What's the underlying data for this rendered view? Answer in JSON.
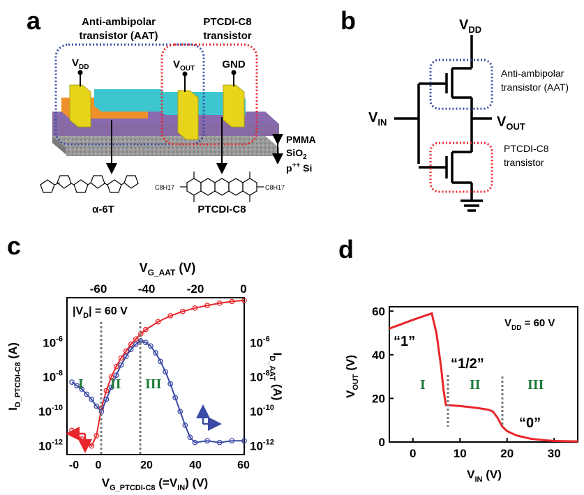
{
  "panels": {
    "a": {
      "label": "a",
      "aat_label_1": "Anti-ambipolar",
      "aat_label_2": "transistor (AAT)",
      "ptcdi_label_1": "PTCDI-C8",
      "ptcdi_label_2": "transistor",
      "vdd": "V",
      "vdd_sub": "DD",
      "vout": "V",
      "vout_sub": "OUT",
      "gnd": "GND",
      "pmma": "PMMA",
      "sio2": "SiO",
      "sio2_sub": "2",
      "si": "p",
      "si_sup": "++",
      "si_rest": " Si",
      "mol1": "α-6T",
      "mol2": "PTCDI-C8",
      "c8h17_left": "C8H17",
      "c8h17_right": "C8H17"
    },
    "b": {
      "label": "b",
      "vdd": "V",
      "vdd_sub": "DD",
      "vin": "V",
      "vin_sub": "IN",
      "vout": "V",
      "vout_sub": "OUT",
      "aat_1": "Anti-ambipolar",
      "aat_2": "transistor (AAT)",
      "ptcdi_1": "PTCDI-C8",
      "ptcdi_2": "transistor"
    },
    "c": {
      "label": "c",
      "top_axis": "V",
      "top_axis_sub": "G_AAT",
      "top_axis_unit": " (V)",
      "top_ticks": [
        "-60",
        "-40",
        "-20",
        "0"
      ],
      "bottom_ticks": [
        "-0",
        "0",
        "20",
        "40",
        "60"
      ],
      "bottom_axis": "V",
      "bottom_axis_sub": "G_PTCDI-C8",
      "bottom_axis_rest": " (=V",
      "bottom_axis_rest_sub": "IN",
      "bottom_axis_unit": ") (V)",
      "left_axis": "I",
      "left_axis_sub": "D_PTCDI-C8",
      "left_axis_unit": " (A)",
      "right_axis": "I",
      "right_axis_sub": "D_AAT",
      "right_axis_unit": " (A)",
      "left_ticks": [
        "10-12",
        "10-10",
        "10-8",
        "10-6"
      ],
      "right_ticks": [
        "10-12",
        "10-10",
        "10-8",
        "10-6"
      ],
      "vd_note": "|V",
      "vd_note_sub": "D",
      "vd_note_rest": "| = 60 V",
      "region_1": "I",
      "region_2": "II",
      "region_3": "III"
    },
    "d": {
      "label": "d",
      "y_axis": "V",
      "y_axis_sub": "OUT",
      "y_axis_unit": " (V)",
      "x_axis": "V",
      "x_axis_sub": "IN",
      "x_axis_unit": " (V)",
      "y_ticks": [
        "0",
        "20",
        "40",
        "60"
      ],
      "x_ticks": [
        "0",
        "10",
        "20",
        "30"
      ],
      "vdd_note": "V",
      "vdd_note_sub": "DD",
      "vdd_note_rest": " = 60 V",
      "state_1": "“1”",
      "state_half": "“1/2”",
      "state_0": "“0”",
      "region_1": "I",
      "region_2": "II",
      "region_3": "III"
    }
  },
  "colors": {
    "red": "#e8262b",
    "blue": "#3a4aa6",
    "green": "#1f7a3a",
    "purple": "#7a5a9a",
    "cyan": "#3ec6d0",
    "orange": "#f0902a",
    "yellow": "#e6d51a"
  },
  "chart_data": [
    {
      "type": "line",
      "panel": "c",
      "series": [
        {
          "x": [
            -10,
            -8,
            -6,
            -4,
            -2,
            0,
            2,
            4,
            6,
            8,
            10,
            12,
            14,
            16,
            18,
            20,
            25,
            30,
            35,
            40,
            45,
            50,
            55,
            60
          ],
          "y": [
            -11.1,
            -11.4,
            -11.6,
            -11.8,
            -12.0,
            -11.4,
            -9.8,
            -8.8,
            -8.0,
            -7.4,
            -6.9,
            -6.5,
            -6.1,
            -5.8,
            -5.5,
            -5.25,
            -4.8,
            -4.45,
            -4.2,
            -4.0,
            -3.85,
            -3.72,
            -3.62,
            -3.55
          ]
        },
        {
          "x": [
            -10,
            -8,
            -6,
            -4,
            -2,
            0,
            2,
            4,
            6,
            8,
            10,
            12,
            14,
            16,
            18,
            20,
            22,
            24,
            26,
            28,
            30,
            32,
            34,
            36,
            38,
            40,
            45,
            50,
            55,
            60
          ],
          "y": [
            -8.3,
            -8.5,
            -8.7,
            -9.0,
            -9.3,
            -9.7,
            -10.0,
            -9.3,
            -8.6,
            -7.9,
            -7.3,
            -6.8,
            -6.4,
            -6.1,
            -5.9,
            -6.0,
            -6.2,
            -6.6,
            -7.1,
            -7.7,
            -8.4,
            -9.2,
            -10.0,
            -10.8,
            -11.5,
            -11.8,
            -11.7,
            -11.8,
            -11.7,
            -11.7
          ]
        }
      ],
      "x_range": [
        -12,
        60
      ],
      "y_range": [
        -12.5,
        -3.4
      ],
      "y_scale": "log10"
    },
    {
      "type": "line",
      "panel": "d",
      "series": [
        {
          "x": [
            -5,
            0,
            4,
            5,
            6,
            6.5,
            7,
            8,
            10,
            12,
            14,
            16,
            17,
            18,
            19,
            20,
            22,
            25,
            28,
            30,
            32,
            35
          ],
          "y": [
            52,
            56,
            59,
            50,
            34,
            24,
            17,
            16.8,
            16.5,
            16,
            15.5,
            14.8,
            14,
            11,
            7,
            5,
            3,
            1.5,
            0.8,
            0.5,
            0.4,
            0.3
          ]
        }
      ],
      "x_range": [
        -5,
        35
      ],
      "y_range": [
        0,
        62
      ]
    }
  ]
}
